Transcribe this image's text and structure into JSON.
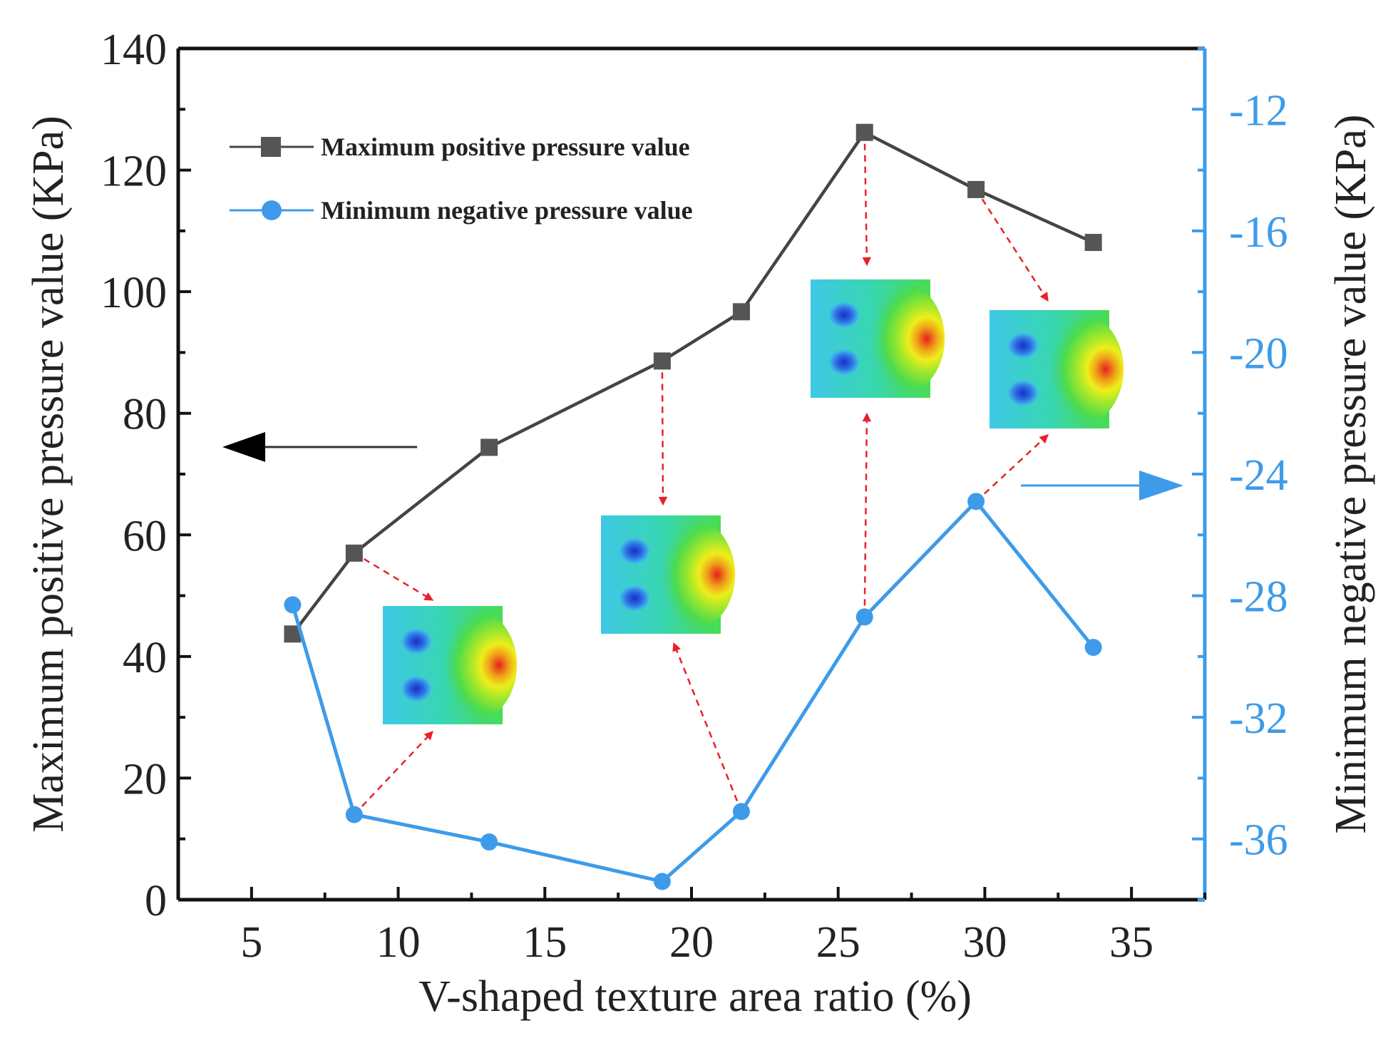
{
  "chart_data": {
    "type": "line",
    "title": "",
    "xlabel": "V-shaped texture area ratio (%)",
    "ylabel": "Maximum positive pressure value (KPa)",
    "y2label": "Minimum negative pressure value (KPa)",
    "xlim": [
      2.5,
      37.5
    ],
    "ylim": [
      0,
      140
    ],
    "y2lim": [
      -38,
      -10
    ],
    "x_ticks": [
      5,
      10,
      15,
      20,
      25,
      30,
      35
    ],
    "y_ticks": [
      0,
      20,
      40,
      60,
      80,
      100,
      120,
      140
    ],
    "y2_ticks": [
      -12,
      -16,
      -20,
      -24,
      -28,
      -32,
      -36
    ],
    "grid": false,
    "legend_position": "top-left",
    "series": [
      {
        "name": "Maximum positive pressure value",
        "axis": "left",
        "color": "#444444",
        "marker": "square",
        "x": [
          6.4,
          8.5,
          13.1,
          19.0,
          21.7,
          25.9,
          29.7,
          33.7
        ],
        "values": [
          43.7,
          57.0,
          74.4,
          88.6,
          96.7,
          126.2,
          116.8,
          108.1
        ]
      },
      {
        "name": "Minimum negative pressure value",
        "axis": "right",
        "color": "#3d9be9",
        "marker": "circle",
        "x": [
          6.4,
          8.5,
          13.1,
          19.0,
          21.7,
          25.9,
          29.7,
          33.7
        ],
        "values": [
          -28.3,
          -35.2,
          -36.1,
          -37.4,
          -35.1,
          -28.7,
          -24.9,
          -29.7
        ]
      }
    ],
    "insets": [
      {
        "name": "inset-1",
        "description": "pressure contour map"
      },
      {
        "name": "inset-2",
        "description": "pressure contour map"
      },
      {
        "name": "inset-3",
        "description": "pressure contour map"
      },
      {
        "name": "inset-4",
        "description": "pressure contour map"
      }
    ],
    "annotations": [
      {
        "type": "arrow",
        "direction": "left",
        "target_axis": "left",
        "color": "#000000"
      },
      {
        "type": "arrow",
        "direction": "right",
        "target_axis": "right",
        "color": "#3d9be9"
      }
    ]
  }
}
